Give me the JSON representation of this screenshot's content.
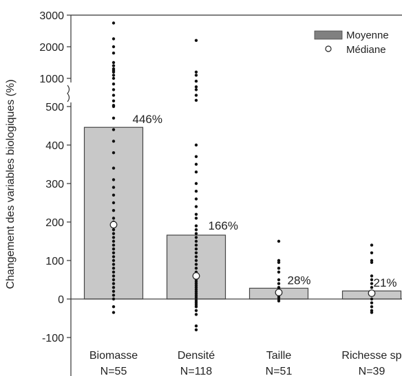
{
  "chart_data": {
    "type": "bar",
    "ylabel": "Changement des variables biologiques (%)",
    "xlabel": "",
    "title": "",
    "ylim": [
      -100,
      3000
    ],
    "axis_break": {
      "lower_max": 500,
      "upper_start": 1000
    },
    "y_ticks_lower": [
      -100,
      0,
      100,
      200,
      300,
      400,
      500
    ],
    "y_ticks_upper": [
      1000,
      2000,
      3000
    ],
    "legend": {
      "position": "top-right",
      "items": [
        {
          "label": "Moyenne",
          "symbol": "bar"
        },
        {
          "label": "Médiane",
          "symbol": "open-circle"
        }
      ]
    },
    "categories": [
      {
        "label": "Biomasse",
        "n_label": "N=55"
      },
      {
        "label": "Densité",
        "n_label": "N=118"
      },
      {
        "label": "Taille",
        "n_label": "N=51"
      },
      {
        "label": "Richesse sp",
        "n_label": "N=39"
      }
    ],
    "series": [
      {
        "name": "Moyenne",
        "values": [
          446,
          166,
          28,
          21
        ],
        "value_labels": [
          "446%",
          "166%",
          "28%",
          "21%"
        ]
      },
      {
        "name": "Médiane",
        "values": [
          193,
          60,
          17,
          15
        ]
      }
    ],
    "points": [
      [
        2750,
        2250,
        2000,
        1800,
        1500,
        1400,
        1300,
        1250,
        1200,
        1100,
        1000,
        900,
        800,
        700,
        600,
        520,
        500,
        470,
        440,
        410,
        380,
        340,
        310,
        290,
        270,
        250,
        230,
        210,
        200,
        180,
        170,
        160,
        150,
        140,
        130,
        120,
        110,
        100,
        90,
        80,
        70,
        60,
        50,
        40,
        30,
        20,
        10,
        0,
        -20,
        -35
      ],
      [
        2200,
        1200,
        1100,
        950,
        850,
        800,
        700,
        610,
        400,
        370,
        350,
        330,
        300,
        280,
        260,
        240,
        220,
        210,
        190,
        180,
        170,
        160,
        150,
        140,
        130,
        120,
        110,
        100,
        90,
        80,
        70,
        60,
        50,
        45,
        40,
        35,
        30,
        25,
        20,
        15,
        10,
        5,
        0,
        -5,
        -10,
        -15,
        -20,
        -30,
        -40,
        -70,
        -80
      ],
      [
        150,
        100,
        95,
        80,
        70,
        50,
        40,
        30,
        25,
        20,
        15,
        10,
        5,
        0,
        -5
      ],
      [
        140,
        120,
        100,
        95,
        60,
        50,
        40,
        30,
        20,
        10,
        0,
        -10,
        -20,
        -30,
        -35
      ]
    ],
    "grid": false,
    "bar_color": "#c8c8c8",
    "bar_edge_color": "#444444",
    "point_color": "#111111"
  }
}
